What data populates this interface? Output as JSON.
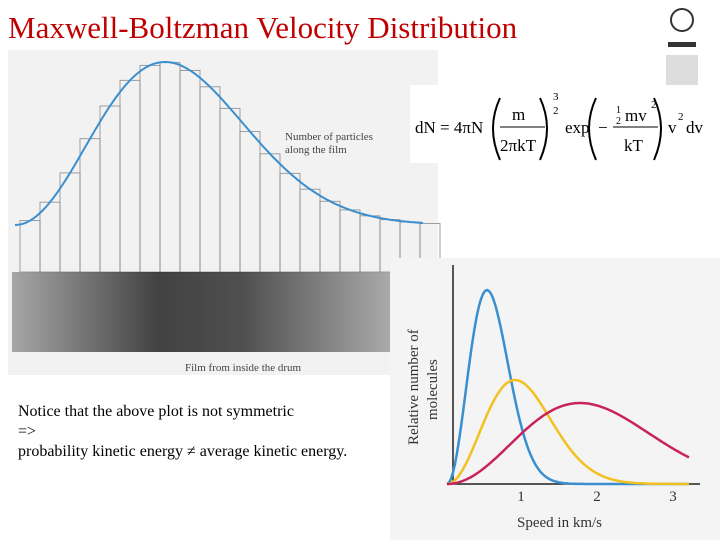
{
  "title": "Maxwell-Boltzman Velocity Distribution",
  "histogram": {
    "curve_label": [
      "Number of particles",
      "along the film"
    ],
    "film_label": "Film from inside the drum"
  },
  "formula": {
    "lhs": "dN = 4πN",
    "num1": "m",
    "den1": "2πkT",
    "exp_num": "3",
    "exp_den": "2",
    "exp": "exp",
    "minus": "−",
    "half_num": "1",
    "half_den": "2",
    "num2": "mv",
    "sq1": "2",
    "den2": "kT",
    "v": "v",
    "sq2": "2",
    "dv": "dv"
  },
  "speed_chart": {
    "x_label": "Speed in km/s",
    "y_label": [
      "Relative number of",
      "molecules"
    ],
    "xticks": [
      "1",
      "2",
      "3"
    ]
  },
  "notice": [
    "Notice that the above plot is not symmetric",
    "=>",
    "probability kinetic energy ≠ average kinetic energy."
  ]
}
